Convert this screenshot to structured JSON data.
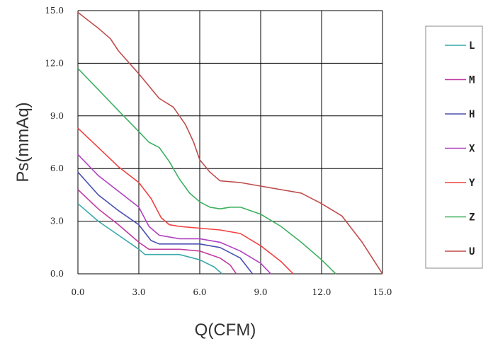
{
  "chart_data": {
    "type": "line",
    "title": "",
    "xlabel": "Q(CFM)",
    "ylabel": "Ps(mmAq)",
    "xlim": [
      0,
      15
    ],
    "ylim": [
      0,
      15
    ],
    "x_ticks": [
      "0.0",
      "3.0",
      "6.0",
      "9.0",
      "12.0",
      "15.0"
    ],
    "y_ticks": [
      "0.0",
      "3.0",
      "6.0",
      "9.0",
      "12.0",
      "15.0"
    ],
    "grid": true,
    "legend_position": "right",
    "series": [
      {
        "name": "L",
        "color": "#3aa9a9",
        "x": [
          0,
          1,
          2,
          3,
          3.3,
          4,
          5,
          6,
          6.7,
          7.1
        ],
        "y": [
          4.0,
          3.0,
          2.2,
          1.4,
          1.1,
          1.1,
          1.1,
          0.8,
          0.4,
          0
        ]
      },
      {
        "name": "M",
        "color": "#c03ca0",
        "x": [
          0,
          1,
          2,
          3,
          3.5,
          4,
          5,
          6,
          7,
          7.5,
          7.8
        ],
        "y": [
          4.8,
          3.7,
          2.8,
          1.8,
          1.4,
          1.4,
          1.4,
          1.3,
          0.9,
          0.5,
          0
        ]
      },
      {
        "name": "H",
        "color": "#4a4fb0",
        "x": [
          0,
          1,
          2,
          3,
          3.6,
          4,
          5,
          6,
          7,
          8,
          8.6
        ],
        "y": [
          5.8,
          4.5,
          3.6,
          2.8,
          1.9,
          1.7,
          1.7,
          1.7,
          1.5,
          0.9,
          0
        ]
      },
      {
        "name": "X",
        "color": "#b040c0",
        "x": [
          0,
          1,
          2,
          3,
          3.5,
          4,
          5,
          6,
          7,
          8,
          9,
          9.5
        ],
        "y": [
          6.8,
          5.6,
          4.7,
          3.8,
          2.7,
          2.2,
          2.0,
          2.0,
          1.8,
          1.3,
          0.6,
          0
        ]
      },
      {
        "name": "Y",
        "color": "#f04040",
        "x": [
          0,
          1,
          2,
          3,
          3.6,
          4.1,
          4.5,
          5,
          6,
          7,
          8,
          9,
          10,
          10.6
        ],
        "y": [
          8.3,
          7.2,
          6.1,
          5.2,
          4.3,
          3.2,
          2.8,
          2.7,
          2.6,
          2.5,
          2.3,
          1.6,
          0.7,
          0
        ]
      },
      {
        "name": "Z",
        "color": "#3cb060",
        "x": [
          0,
          1,
          2,
          3,
          3.5,
          4,
          4.5,
          5,
          5.5,
          6,
          6.5,
          7,
          7.5,
          8,
          9,
          10,
          11,
          12,
          12.7
        ],
        "y": [
          11.7,
          10.5,
          9.3,
          8.1,
          7.5,
          7.2,
          6.4,
          5.4,
          4.6,
          4.1,
          3.8,
          3.7,
          3.8,
          3.8,
          3.4,
          2.7,
          1.8,
          0.8,
          0
        ]
      },
      {
        "name": "U",
        "color": "#c04b4b",
        "x": [
          0,
          1,
          1.6,
          2,
          3,
          4,
          4.7,
          5.3,
          5.7,
          6,
          6.5,
          7,
          8,
          9,
          10,
          11,
          12,
          13,
          14,
          15
        ],
        "y": [
          14.9,
          14.0,
          13.4,
          12.7,
          11.4,
          10.0,
          9.5,
          8.5,
          7.5,
          6.5,
          5.8,
          5.3,
          5.2,
          5.0,
          4.8,
          4.6,
          4.0,
          3.3,
          1.8,
          0
        ]
      }
    ]
  }
}
